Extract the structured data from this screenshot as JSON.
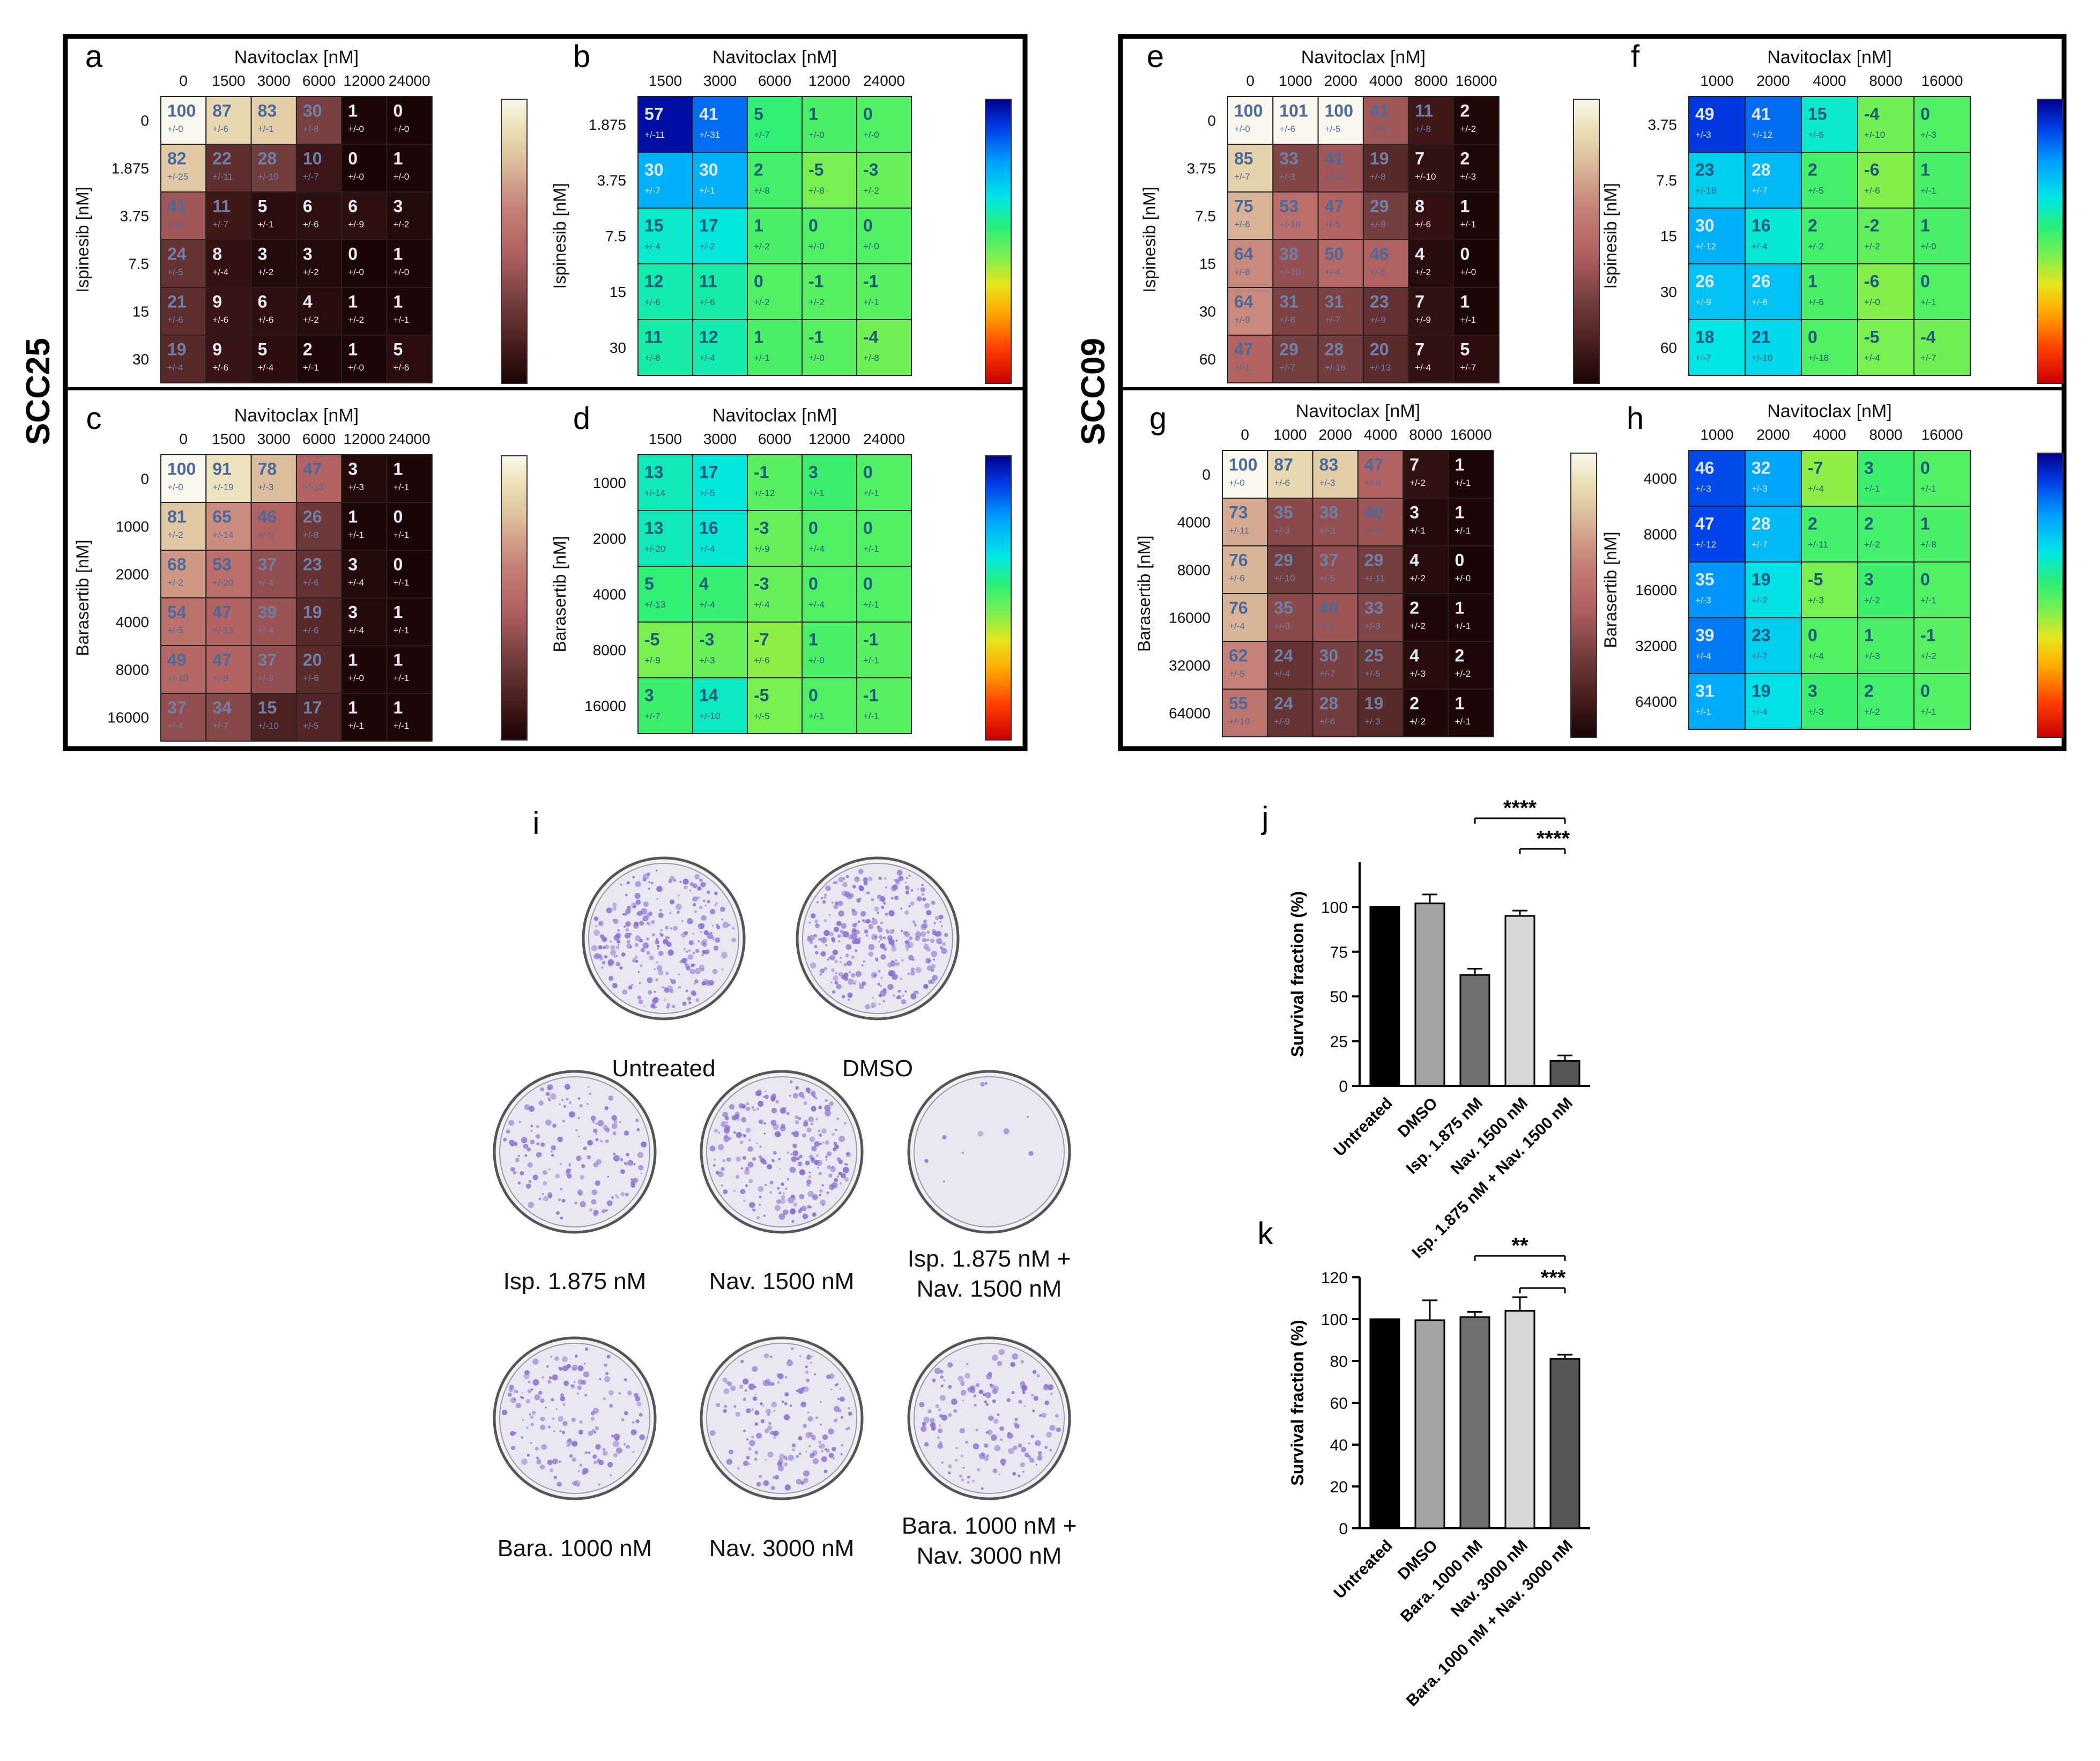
{
  "figure": {
    "cell_lines": [
      "SCC25",
      "SCC09"
    ]
  },
  "colors": {
    "frame": "#000000",
    "cell_border": "#1a1a1a",
    "value_text_light": "#3f5d8a",
    "value_text_dark": "#ffffff",
    "sd_text": "#555555",
    "bar_untreated": "#000000",
    "bar_dmso": "#a3a3a3",
    "bar_single1": "#707070",
    "bar_single2": "#d7d7d7",
    "bar_combo": "#555555",
    "dish_rim": "#6e6e6e",
    "dish_inner": "#ecebf2",
    "colony": "#8c6fd0"
  },
  "chart_data": [
    {
      "id": "a",
      "type": "heatmap",
      "colormap": "pink",
      "title": "Navitoclax [nM]",
      "ylabel": "Ispinesib [nM]",
      "x": [
        "0",
        "1500",
        "3000",
        "6000",
        "12000",
        "24000"
      ],
      "y": [
        "0",
        "1.875",
        "3.75",
        "7.5",
        "15",
        "30"
      ],
      "values": [
        [
          100,
          87,
          83,
          30,
          1,
          0
        ],
        [
          82,
          22,
          28,
          10,
          0,
          1
        ],
        [
          41,
          11,
          5,
          6,
          6,
          3
        ],
        [
          24,
          8,
          3,
          3,
          0,
          1
        ],
        [
          21,
          9,
          6,
          4,
          1,
          1
        ],
        [
          19,
          9,
          5,
          2,
          1,
          5
        ]
      ],
      "sd": [
        [
          "+/-0",
          "+/-6",
          "+/-1",
          "+/-8",
          "+/-0",
          "+/-0"
        ],
        [
          "+/-25",
          "+/-11",
          "+/-10",
          "+/-7",
          "+/-0",
          "+/-0"
        ],
        [
          "+/-6",
          "+/-7",
          "+/-1",
          "+/-6",
          "+/-9",
          "+/-2"
        ],
        [
          "+/-5",
          "+/-4",
          "+/-2",
          "+/-2",
          "+/-0",
          "+/-0"
        ],
        [
          "+/-6",
          "+/-6",
          "+/-6",
          "+/-2",
          "+/-2",
          "+/-1"
        ],
        [
          "+/-4",
          "+/-6",
          "+/-4",
          "+/-1",
          "+/-0",
          "+/-6"
        ]
      ]
    },
    {
      "id": "b",
      "type": "heatmap",
      "colormap": "jet",
      "title": "Navitoclax [nM]",
      "ylabel": "Ispinesib [nM]",
      "x": [
        "1500",
        "3000",
        "6000",
        "12000",
        "24000"
      ],
      "y": [
        "1.875",
        "3.75",
        "7.5",
        "15",
        "30"
      ],
      "values": [
        [
          57,
          41,
          5,
          1,
          0
        ],
        [
          30,
          30,
          2,
          -5,
          -3
        ],
        [
          15,
          17,
          1,
          0,
          0
        ],
        [
          12,
          11,
          0,
          -1,
          -1
        ],
        [
          11,
          12,
          1,
          -1,
          -4
        ]
      ],
      "sd": [
        [
          "+/-11",
          "+/-31",
          "+/-7",
          "+/-0",
          "+/-0"
        ],
        [
          "+/-7",
          "+/-1",
          "+/-8",
          "+/-8",
          "+/-2"
        ],
        [
          "+/-4",
          "+/-2",
          "+/-2",
          "+/-0",
          "+/-0"
        ],
        [
          "+/-6",
          "+/-6",
          "+/-2",
          "+/-2",
          "+/-1"
        ],
        [
          "+/-8",
          "+/-4",
          "+/-1",
          "+/-0",
          "+/-8"
        ]
      ]
    },
    {
      "id": "c",
      "type": "heatmap",
      "colormap": "pink",
      "title": "Navitoclax [nM]",
      "ylabel": "Barasertib [nM]",
      "x": [
        "0",
        "1500",
        "3000",
        "6000",
        "12000",
        "24000"
      ],
      "y": [
        "0",
        "1000",
        "2000",
        "4000",
        "8000",
        "16000"
      ],
      "values": [
        [
          100,
          91,
          78,
          47,
          3,
          1
        ],
        [
          81,
          65,
          46,
          26,
          1,
          0
        ],
        [
          68,
          53,
          37,
          23,
          3,
          0
        ],
        [
          54,
          47,
          39,
          19,
          3,
          1
        ],
        [
          49,
          47,
          37,
          20,
          1,
          1
        ],
        [
          37,
          34,
          15,
          17,
          1,
          1
        ]
      ],
      "sd": [
        [
          "+/-0",
          "+/-19",
          "+/-3",
          "+/-13",
          "+/-3",
          "+/-1"
        ],
        [
          "+/-2",
          "+/-14",
          "+/-5",
          "+/-8",
          "+/-1",
          "+/-1"
        ],
        [
          "+/-2",
          "+/-20",
          "+/-4",
          "+/-6",
          "+/-4",
          "+/-1"
        ],
        [
          "+/-5",
          "+/-13",
          "+/-4",
          "+/-6",
          "+/-4",
          "+/-1"
        ],
        [
          "+/-10",
          "+/-9",
          "+/-3",
          "+/-6",
          "+/-0",
          "+/-1"
        ],
        [
          "+/-4",
          "+/-7",
          "+/-10",
          "+/-5",
          "+/-1",
          "+/-1"
        ]
      ]
    },
    {
      "id": "d",
      "type": "heatmap",
      "colormap": "jet",
      "title": "Navitoclax [nM]",
      "ylabel": "Barasertib [nM]",
      "x": [
        "1500",
        "3000",
        "6000",
        "12000",
        "24000"
      ],
      "y": [
        "1000",
        "2000",
        "4000",
        "8000",
        "16000"
      ],
      "values": [
        [
          13,
          17,
          -1,
          3,
          0
        ],
        [
          13,
          16,
          -3,
          0,
          0
        ],
        [
          5,
          4,
          -3,
          0,
          0
        ],
        [
          -5,
          -3,
          -7,
          1,
          -1
        ],
        [
          3,
          14,
          -5,
          0,
          -1
        ]
      ],
      "sd": [
        [
          "+/-14",
          "+/-5",
          "+/-12",
          "+/-1",
          "+/-1"
        ],
        [
          "+/-20",
          "+/-4",
          "+/-9",
          "+/-4",
          "+/-1"
        ],
        [
          "+/-13",
          "+/-4",
          "+/-4",
          "+/-4",
          "+/-1"
        ],
        [
          "+/-9",
          "+/-3",
          "+/-6",
          "+/-0",
          "+/-1"
        ],
        [
          "+/-7",
          "+/-10",
          "+/-5",
          "+/-1",
          "+/-1"
        ]
      ]
    },
    {
      "id": "e",
      "type": "heatmap",
      "colormap": "pink",
      "title": "Navitoclax [nM]",
      "ylabel": "Ispinesib [nM]",
      "x": [
        "0",
        "1000",
        "2000",
        "4000",
        "8000",
        "16000"
      ],
      "y": [
        "0",
        "3.75",
        "7.5",
        "15",
        "30",
        "60"
      ],
      "values": [
        [
          100,
          101,
          100,
          41,
          11,
          2
        ],
        [
          85,
          33,
          41,
          19,
          7,
          2
        ],
        [
          75,
          53,
          47,
          29,
          8,
          1
        ],
        [
          64,
          38,
          50,
          46,
          4,
          0
        ],
        [
          64,
          31,
          31,
          23,
          7,
          1
        ],
        [
          47,
          29,
          28,
          20,
          7,
          5
        ]
      ],
      "sd": [
        [
          "+/-0",
          "+/-6",
          "+/-5",
          "+/-5",
          "+/-8",
          "+/-2"
        ],
        [
          "+/-7",
          "+/-3",
          "+/-12",
          "+/-8",
          "+/-10",
          "+/-3"
        ],
        [
          "+/-6",
          "+/-18",
          "+/-5",
          "+/-8",
          "+/-6",
          "+/-1"
        ],
        [
          "+/-8",
          "+/-10",
          "+/-4",
          "+/-6",
          "+/-2",
          "+/-0"
        ],
        [
          "+/-9",
          "+/-6",
          "+/-7",
          "+/-9",
          "+/-9",
          "+/-1"
        ],
        [
          "+/-1",
          "+/-7",
          "+/-16",
          "+/-13",
          "+/-4",
          "+/-7"
        ]
      ]
    },
    {
      "id": "f",
      "type": "heatmap",
      "colormap": "jet",
      "title": "Navitoclax [nM]",
      "ylabel": "Ispinesib [nM]",
      "x": [
        "1000",
        "2000",
        "4000",
        "8000",
        "16000"
      ],
      "y": [
        "3.75",
        "7.5",
        "15",
        "30",
        "60"
      ],
      "values": [
        [
          49,
          41,
          15,
          -4,
          0
        ],
        [
          23,
          28,
          2,
          -6,
          1
        ],
        [
          30,
          16,
          2,
          -2,
          1
        ],
        [
          26,
          26,
          1,
          -6,
          0
        ],
        [
          18,
          21,
          0,
          -5,
          -4
        ]
      ],
      "sd": [
        [
          "+/-3",
          "+/-12",
          "+/-6",
          "+/-10",
          "+/-3"
        ],
        [
          "+/-18",
          "+/-7",
          "+/-5",
          "+/-6",
          "+/-1"
        ],
        [
          "+/-12",
          "+/-4",
          "+/-2",
          "+/-2",
          "+/-0"
        ],
        [
          "+/-9",
          "+/-8",
          "+/-6",
          "+/-0",
          "+/-1"
        ],
        [
          "+/-7",
          "+/-10",
          "+/-18",
          "+/-4",
          "+/-7"
        ]
      ]
    },
    {
      "id": "g",
      "type": "heatmap",
      "colormap": "pink",
      "title": "Navitoclax [nM]",
      "ylabel": "Barasertib [nM]",
      "x": [
        "0",
        "1000",
        "2000",
        "4000",
        "8000",
        "16000"
      ],
      "y": [
        "0",
        "4000",
        "8000",
        "16000",
        "32000",
        "64000"
      ],
      "values": [
        [
          100,
          87,
          83,
          47,
          7,
          1
        ],
        [
          73,
          35,
          38,
          40,
          3,
          1
        ],
        [
          76,
          29,
          37,
          29,
          4,
          0
        ],
        [
          76,
          35,
          40,
          33,
          2,
          1
        ],
        [
          62,
          24,
          30,
          25,
          4,
          2
        ],
        [
          55,
          24,
          28,
          19,
          2,
          1
        ]
      ],
      "sd": [
        [
          "+/-0",
          "+/-6",
          "+/-3",
          "+/-9",
          "+/-2",
          "+/-1"
        ],
        [
          "+/-11",
          "+/-3",
          "+/-3",
          "+/-4",
          "+/-1",
          "+/-1"
        ],
        [
          "+/-6",
          "+/-10",
          "+/-5",
          "+/-11",
          "+/-2",
          "+/-0"
        ],
        [
          "+/-4",
          "+/-3",
          "+/-2",
          "+/-3",
          "+/-2",
          "+/-1"
        ],
        [
          "+/-5",
          "+/-4",
          "+/-7",
          "+/-5",
          "+/-3",
          "+/-2"
        ],
        [
          "+/-10",
          "+/-9",
          "+/-6",
          "+/-3",
          "+/-2",
          "+/-1"
        ]
      ]
    },
    {
      "id": "h",
      "type": "heatmap",
      "colormap": "jet",
      "title": "Navitoclax [nM]",
      "ylabel": "Barasertib [nM]",
      "x": [
        "1000",
        "2000",
        "4000",
        "8000",
        "16000"
      ],
      "y": [
        "4000",
        "8000",
        "16000",
        "32000",
        "64000"
      ],
      "values": [
        [
          46,
          32,
          -7,
          3,
          0
        ],
        [
          47,
          28,
          2,
          2,
          1
        ],
        [
          35,
          19,
          -5,
          3,
          0
        ],
        [
          39,
          23,
          0,
          1,
          -1
        ],
        [
          31,
          19,
          3,
          2,
          0
        ]
      ],
      "sd": [
        [
          "+/-3",
          "+/-3",
          "+/-4",
          "+/-1",
          "+/-1"
        ],
        [
          "+/-12",
          "+/-7",
          "+/-11",
          "+/-2",
          "+/-8"
        ],
        [
          "+/-3",
          "+/-2",
          "+/-3",
          "+/-2",
          "+/-1"
        ],
        [
          "+/-4",
          "+/-7",
          "+/-4",
          "+/-3",
          "+/-2"
        ],
        [
          "+/-1",
          "+/-4",
          "+/-3",
          "+/-2",
          "+/-1"
        ]
      ]
    },
    {
      "id": "j",
      "type": "bar",
      "ylabel": "Survival fraction (%)",
      "ylim": [
        0,
        125
      ],
      "yticks": [
        "0",
        "25",
        "50",
        "75",
        "100"
      ],
      "categories": [
        "Untreated",
        "DMSO",
        "Isp. 1.875 nM",
        "Nav. 1500 nM",
        "Isp. 1.875 nM + Nav. 1500 nM"
      ],
      "values": [
        100,
        102,
        62,
        95,
        14
      ],
      "errors": [
        0,
        5,
        3.5,
        3,
        3
      ],
      "significance": [
        {
          "from": 2,
          "to": 4,
          "label": "****"
        },
        {
          "from": 3,
          "to": 4,
          "label": "****"
        }
      ]
    },
    {
      "id": "k",
      "type": "bar",
      "ylabel": "Survival fraction (%)",
      "ylim": [
        0,
        125
      ],
      "yticks": [
        "0",
        "20",
        "40",
        "60",
        "80",
        "100",
        "120"
      ],
      "categories": [
        "Untreated",
        "DMSO",
        "Bara. 1000 nM",
        "Nav. 3000 nM",
        "Bara. 1000 nM + Nav. 3000 nM"
      ],
      "values": [
        100,
        99.5,
        101,
        104,
        81
      ],
      "errors": [
        0,
        9.5,
        2.5,
        6.5,
        2
      ],
      "significance": [
        {
          "from": 2,
          "to": 4,
          "label": "**"
        },
        {
          "from": 3,
          "to": 4,
          "label": "***"
        }
      ]
    }
  ],
  "clonogenic": {
    "label": "i",
    "dishes": [
      {
        "caption": [
          "Untreated"
        ],
        "density": 260
      },
      {
        "caption": [
          "DMSO"
        ],
        "density": 300
      },
      {
        "caption": [
          "Isp. 1.875 nM"
        ],
        "density": 150
      },
      {
        "caption": [
          "Nav. 1500 nM"
        ],
        "density": 240
      },
      {
        "caption": [
          "Isp. 1.875 nM +",
          "Nav. 1500 nM"
        ],
        "density": 10
      },
      {
        "caption": [
          "Bara. 1000 nM"
        ],
        "density": 160
      },
      {
        "caption": [
          "Nav. 3000 nM"
        ],
        "density": 160
      },
      {
        "caption": [
          "Bara. 1000 nM +",
          "Nav. 3000 nM"
        ],
        "density": 150
      }
    ]
  }
}
